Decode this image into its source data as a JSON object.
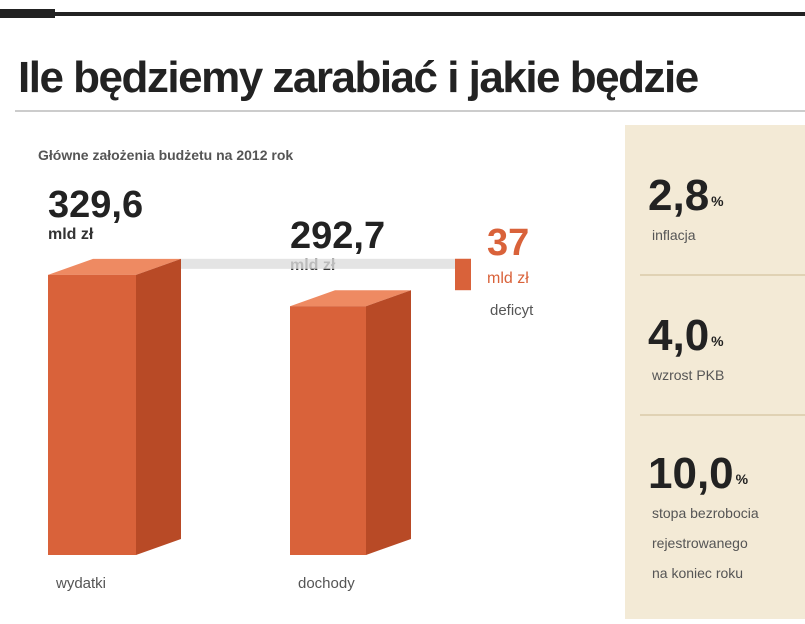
{
  "chart_data": {
    "type": "bar",
    "title": "Ile będziemy zarabiać i jakie będzie",
    "subtitle": "Główne założenia budżetu na 2012 rok",
    "categories": [
      "wydatki",
      "dochody"
    ],
    "values": [
      329.6,
      292.7
    ],
    "value_labels": [
      "329,6",
      "292,7"
    ],
    "unit": "mld zł",
    "color": "#d9623a",
    "deficit": {
      "value": 37,
      "unit": "mld zł",
      "label": "deficyt",
      "color": "#d9623a"
    }
  },
  "stats": [
    {
      "value": "2,8",
      "unit": "%",
      "label": [
        "inflacja"
      ]
    },
    {
      "value": "4,0",
      "unit": "%",
      "label": [
        "wzrost PKB"
      ]
    },
    {
      "value": "10,0",
      "unit": "%",
      "label": [
        "stopa bezrobocia",
        "rejestrowanego",
        "na koniec roku"
      ]
    }
  ]
}
